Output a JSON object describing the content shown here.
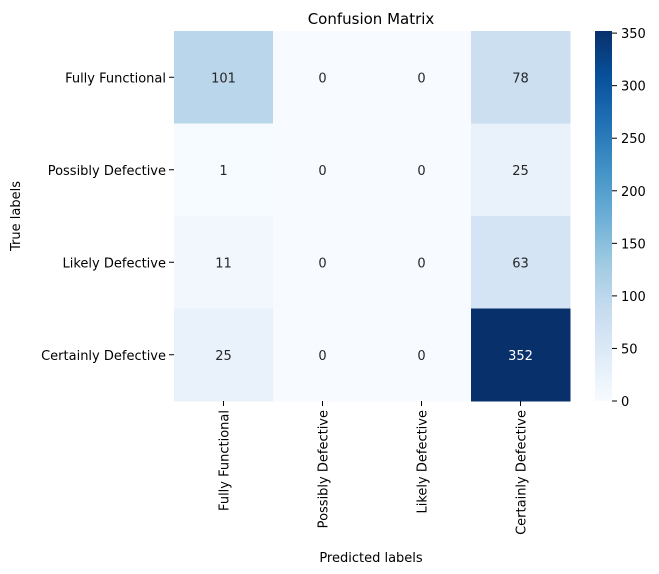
{
  "chart_data": {
    "type": "heatmap",
    "title": "Confusion Matrix",
    "xlabel": "Predicted labels",
    "ylabel": "True labels",
    "x_categories": [
      "Fully Functional",
      "Possibly Defective",
      "Likely Defective",
      "Certainly Defective"
    ],
    "y_categories": [
      "Fully Functional",
      "Possibly Defective",
      "Likely Defective",
      "Certainly Defective"
    ],
    "values": [
      [
        101,
        0,
        0,
        78
      ],
      [
        1,
        0,
        0,
        25
      ],
      [
        11,
        0,
        0,
        63
      ],
      [
        25,
        0,
        0,
        352
      ]
    ],
    "colormap": "Blues",
    "vmin": 0,
    "vmax": 352,
    "colorbar_ticks": [
      0,
      50,
      100,
      150,
      200,
      250,
      300,
      350
    ],
    "colors": {
      "low": "#f7fbff",
      "high": "#08306b",
      "text_dark": "#262626",
      "text_light": "#ffffff"
    }
  }
}
